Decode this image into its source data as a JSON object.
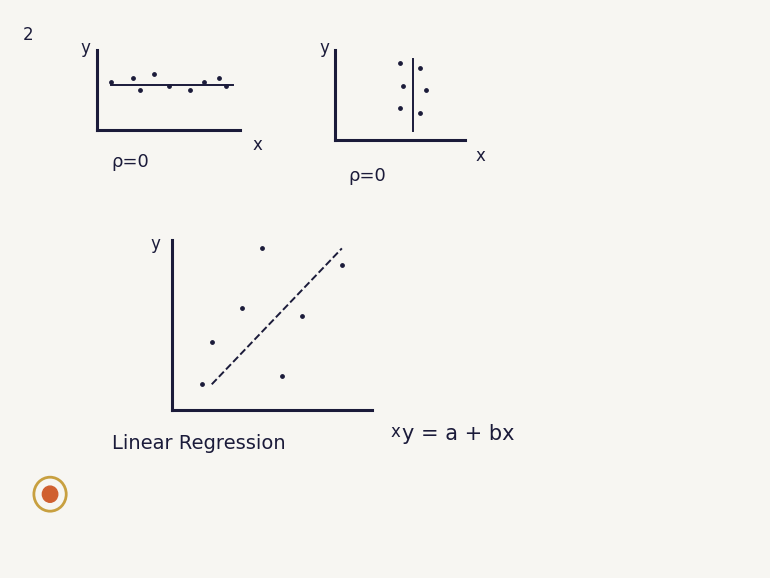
{
  "page_number": "2",
  "chart_data": [
    {
      "type": "scatter",
      "x_label": "x",
      "y_label": "y",
      "annotation": "ρ=0",
      "xlim": [
        0,
        10
      ],
      "ylim": [
        0,
        10
      ],
      "xticks": [],
      "yticks": [],
      "tick_labels": false,
      "color": "#1b1b3a",
      "series": [
        {
          "type": "scatter",
          "marker": "dot",
          "x": [
            1,
            2.5,
            4,
            5,
            6.5,
            7.5,
            8.5,
            9,
            3
          ],
          "values": [
            6,
            6.5,
            7,
            5.5,
            5,
            6,
            6.5,
            5.5,
            5
          ]
        },
        {
          "type": "line",
          "line_style": "solid",
          "x": [
            1,
            9.5
          ],
          "values": [
            5.7,
            5.7
          ]
        }
      ]
    },
    {
      "type": "scatter",
      "x_label": "x",
      "y_label": "y",
      "annotation": "ρ=0",
      "xlim": [
        0,
        10
      ],
      "ylim": [
        0,
        10
      ],
      "xticks": [],
      "yticks": [],
      "tick_labels": false,
      "color": "#1b1b3a",
      "series": [
        {
          "type": "scatter",
          "marker": "dot",
          "x": [
            5,
            6.5,
            5.2,
            7,
            5,
            6.5
          ],
          "values": [
            8.5,
            8,
            6,
            5.5,
            3.5,
            3
          ]
        },
        {
          "type": "line",
          "line_style": "solid",
          "x": [
            6,
            6
          ],
          "values": [
            1,
            9
          ]
        }
      ]
    },
    {
      "type": "scatter",
      "x_label": "x",
      "y_label": "y",
      "title": "Linear Regression",
      "annotation": "y = a + bx",
      "xlim": [
        0,
        10
      ],
      "ylim": [
        0,
        10
      ],
      "xticks": [],
      "yticks": [],
      "tick_labels": false,
      "color": "#1b1b3a",
      "series": [
        {
          "type": "scatter",
          "marker": "dot",
          "x": [
            2,
            3.5,
            1.5,
            6.5,
            5.5,
            4.5,
            8.5
          ],
          "values": [
            4,
            6,
            1.5,
            5.5,
            2,
            9.5,
            8.5
          ]
        },
        {
          "type": "line",
          "line_style": "dashed",
          "x": [
            2,
            8.5
          ],
          "values": [
            1.5,
            9.5
          ]
        }
      ]
    }
  ]
}
